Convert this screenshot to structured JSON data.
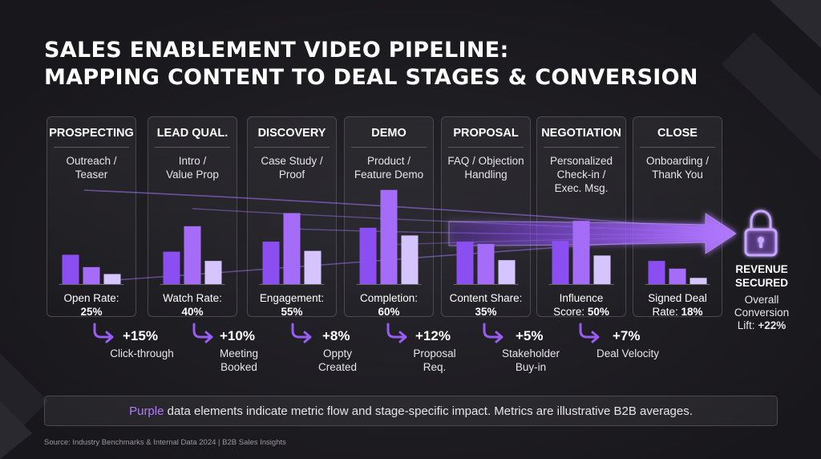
{
  "title_lines": [
    "SALES ENABLEMENT VIDEO PIPELINE:",
    "MAPPING CONTENT TO DEAL STAGES & CONVERSION"
  ],
  "stages": [
    {
      "name": "PROSPECTING",
      "content": "Outreach /\nTeaser",
      "metric_label": "Open Rate:",
      "metric_value": "25%"
    },
    {
      "name": "LEAD QUAL.",
      "content": "Intro /\nValue Prop",
      "metric_label": "Watch Rate:",
      "metric_value": "40%"
    },
    {
      "name": "DISCOVERY",
      "content": "Case Study /\nProof",
      "metric_label": "Engagement:",
      "metric_value": "55%"
    },
    {
      "name": "DEMO",
      "content": "Product /\nFeature Demo",
      "metric_label": "Completion:",
      "metric_value": "60%"
    },
    {
      "name": "PROPOSAL",
      "content": "FAQ / Objection\nHandling",
      "metric_label": "Content Share:",
      "metric_value": "35%"
    },
    {
      "name": "NEGOTIATION",
      "content": "Personalized\nCheck-in /\nExec. Msg.",
      "metric_label": "Influence\nScore:",
      "metric_value": "50%"
    },
    {
      "name": "CLOSE",
      "content": "Onboarding /\nThank You",
      "metric_label": "Signed Deal\nRate:",
      "metric_value": "18%"
    }
  ],
  "lifts": [
    {
      "value": "+15%",
      "label": "Click-through"
    },
    {
      "value": "+10%",
      "label": "Meeting\nBooked"
    },
    {
      "value": "+8%",
      "label": "Oppty\nCreated"
    },
    {
      "value": "+12%",
      "label": "Proposal\nReq."
    },
    {
      "value": "+5%",
      "label": "Stakeholder\nBuy-in"
    },
    {
      "value": "+7%",
      "label": "Deal Velocity"
    }
  ],
  "revenue": {
    "title": "REVENUE\nSECURED",
    "label": "Overall\nConversion\nLift:",
    "value": "+22%"
  },
  "footer": {
    "accent_word": "Purple",
    "text": " data elements indicate metric flow and stage-specific impact. Metrics are illustrative B2B averages."
  },
  "source": "Source: Industry Benchmarks & Internal Data 2024 | B2B Sales Insights",
  "colors": {
    "accent": "#9a5cf5",
    "accent_light": "#c7a6ff",
    "accent_pale": "#d9c4ff",
    "background": "#1c1b20"
  },
  "icons": {
    "lock": "lock-icon",
    "flow_arrow": "curved-arrow-icon"
  },
  "chart_data": {
    "type": "bar",
    "series_per_stage": 3,
    "categories": [
      "PROSPECTING",
      "LEAD QUAL.",
      "DISCOVERY",
      "DEMO",
      "PROPOSAL",
      "NEGOTIATION",
      "CLOSE"
    ],
    "bars": [
      [
        0.38,
        0.22,
        0.13
      ],
      [
        0.42,
        0.75,
        0.3
      ],
      [
        0.55,
        0.92,
        0.43
      ],
      [
        0.73,
        1.22,
        0.63
      ],
      [
        0.55,
        0.52,
        0.31
      ],
      [
        0.56,
        0.82,
        0.37
      ],
      [
        0.3,
        0.2,
        0.08
      ]
    ],
    "ylim": [
      0,
      1.3
    ],
    "grid": false,
    "legend": "none"
  }
}
